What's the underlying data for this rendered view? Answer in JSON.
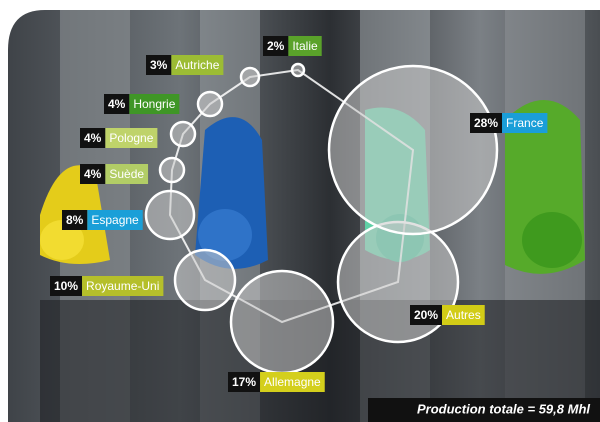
{
  "chart_data": {
    "type": "bubble",
    "note": "Production totale = 59,8 Mhl",
    "categories": [
      "Italie",
      "Autriche",
      "Hongrie",
      "Pologne",
      "Suède",
      "Espagne",
      "Royaume-Uni",
      "Allemagne",
      "Autres",
      "France"
    ],
    "values": [
      2,
      3,
      4,
      4,
      4,
      8,
      10,
      17,
      20,
      28
    ],
    "value_labels": [
      "2%",
      "3%",
      "4%",
      "4%",
      "4%",
      "8%",
      "10%",
      "17%",
      "20%",
      "28%"
    ],
    "colors": [
      "#5aa22a",
      "#9cbc34",
      "#3f9626",
      "#bfd36a",
      "#b2cd66",
      "#1a9fd8",
      "#b5bf2a",
      "#d4cf1c",
      "#d2cc16",
      "#1a9ed8"
    ]
  }
}
